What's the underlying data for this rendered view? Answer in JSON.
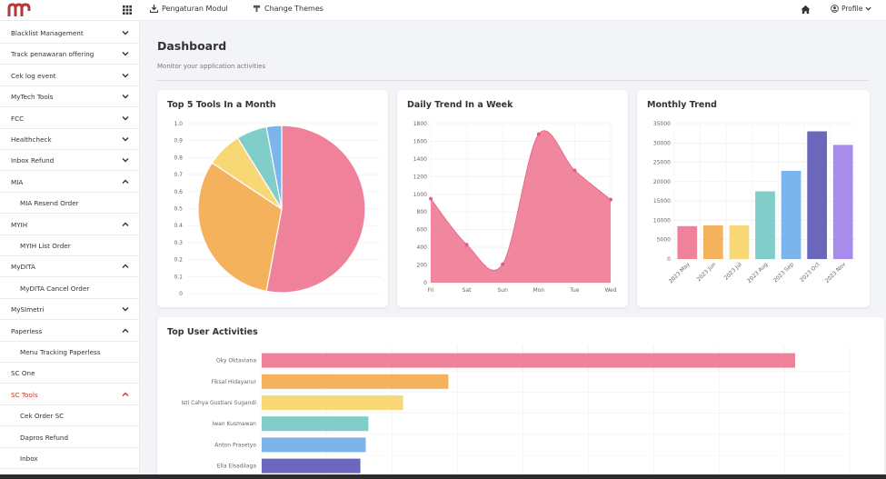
{
  "header": {
    "links": [
      {
        "label": "Pengaturan Modul",
        "icon": "download-icon"
      },
      {
        "label": "Change Themes",
        "icon": "palette-icon"
      }
    ],
    "profile_label": "Profile"
  },
  "sidebar": {
    "items": [
      {
        "label": "Blacklist Management",
        "level": "top",
        "chevron": "down",
        "active": false
      },
      {
        "label": "Track penawaran offering",
        "level": "top",
        "chevron": "down",
        "active": false
      },
      {
        "label": "Cek log event",
        "level": "top",
        "chevron": "down",
        "active": false
      },
      {
        "label": "MyTech Tools",
        "level": "top",
        "chevron": "down",
        "active": false
      },
      {
        "label": "FCC",
        "level": "top",
        "chevron": "down",
        "active": false
      },
      {
        "label": "Healthcheck",
        "level": "top",
        "chevron": "down",
        "active": false
      },
      {
        "label": "Inbox Refund",
        "level": "top",
        "chevron": "down",
        "active": false
      },
      {
        "label": "MIA",
        "level": "top",
        "chevron": "up",
        "active": false
      },
      {
        "label": "MIA Resend Order",
        "level": "sub",
        "chevron": "",
        "active": false
      },
      {
        "label": "MYIH",
        "level": "top",
        "chevron": "up",
        "active": false
      },
      {
        "label": "MYIH List Order",
        "level": "sub",
        "chevron": "",
        "active": false
      },
      {
        "label": "MyDITA",
        "level": "top",
        "chevron": "up",
        "active": false
      },
      {
        "label": "MyDITA Cancel Order",
        "level": "sub",
        "chevron": "",
        "active": false
      },
      {
        "label": "MySImetri",
        "level": "top",
        "chevron": "down",
        "active": false
      },
      {
        "label": "Paperless",
        "level": "top",
        "chevron": "up",
        "active": false
      },
      {
        "label": "Menu Tracking Paperless",
        "level": "sub",
        "chevron": "",
        "active": false
      },
      {
        "label": "SC One",
        "level": "top",
        "chevron": "",
        "active": false
      },
      {
        "label": "SC Tools",
        "level": "top",
        "chevron": "up",
        "active": true
      },
      {
        "label": "Cek Order SC",
        "level": "sub",
        "chevron": "",
        "active": false
      },
      {
        "label": "Dapros Refund",
        "level": "sub",
        "chevron": "",
        "active": false
      },
      {
        "label": "Inbox",
        "level": "sub",
        "chevron": "",
        "active": false
      }
    ]
  },
  "page": {
    "title": "Dashboard",
    "subtitle": "Monitor your application activities"
  },
  "colors": {
    "pink": "#f0819a",
    "orange": "#f5b25d",
    "yellow": "#f8d775",
    "teal": "#80cdc9",
    "blue": "#7cb5ec",
    "indigo": "#6b67bd",
    "purple": "#a98bee",
    "accent": "#c0392b"
  },
  "chart_data": [
    {
      "type": "pie",
      "title": "Top 5 Tools In a Month",
      "yticks": [
        "1.0",
        "0.9",
        "0.8",
        "0.7",
        "0.6",
        "0.5",
        "0.4",
        "0.3",
        "0.2",
        "0.1",
        "0"
      ],
      "values": [
        54,
        32,
        7,
        6,
        3
      ],
      "colors": [
        "#f0819a",
        "#f5b25d",
        "#f8d775",
        "#80cdc9",
        "#7cb5ec"
      ]
    },
    {
      "type": "area",
      "title": "Daily Trend In a Week",
      "categories": [
        "Fri",
        "Sat",
        "Sun",
        "Mon",
        "Tue",
        "Wed"
      ],
      "values": [
        950,
        430,
        210,
        1680,
        1270,
        940
      ],
      "ylim": [
        0,
        1800
      ],
      "yticks": [
        1800,
        1600,
        1400,
        1200,
        1000,
        800,
        600,
        400,
        200,
        0
      ],
      "color": "#f0819a"
    },
    {
      "type": "bar",
      "title": "Monthly Trend",
      "categories": [
        "2023 May",
        "2023 Jun",
        "2023 Jul",
        "2023 Aug",
        "2023 Sep",
        "2023 Oct",
        "2023 Nov"
      ],
      "values": [
        8500,
        8700,
        8700,
        17500,
        22800,
        33000,
        29500
      ],
      "ylim": [
        0,
        35000
      ],
      "yticks": [
        35000,
        30000,
        25000,
        20000,
        15000,
        10000,
        5000,
        0
      ],
      "colors": [
        "#f0819a",
        "#f5b25d",
        "#f8d775",
        "#80cdc9",
        "#7cb5ec",
        "#6b67bd",
        "#a98bee"
      ]
    },
    {
      "type": "bar",
      "orientation": "horizontal",
      "title": "Top User Activities",
      "categories": [
        "Oky Oktaviana",
        "Fiksal Hidayanur",
        "Isti Cahya Gustiani Sugandi",
        "Iwan Kusmawan",
        "Anton Prasetyo",
        "Ella Elsadilaga"
      ],
      "values": [
        100,
        35,
        26.5,
        20,
        19.5,
        18.5
      ],
      "colors": [
        "#f0819a",
        "#f5b25d",
        "#f8d775",
        "#80cdc9",
        "#7cb5ec",
        "#6b67bd"
      ]
    }
  ]
}
